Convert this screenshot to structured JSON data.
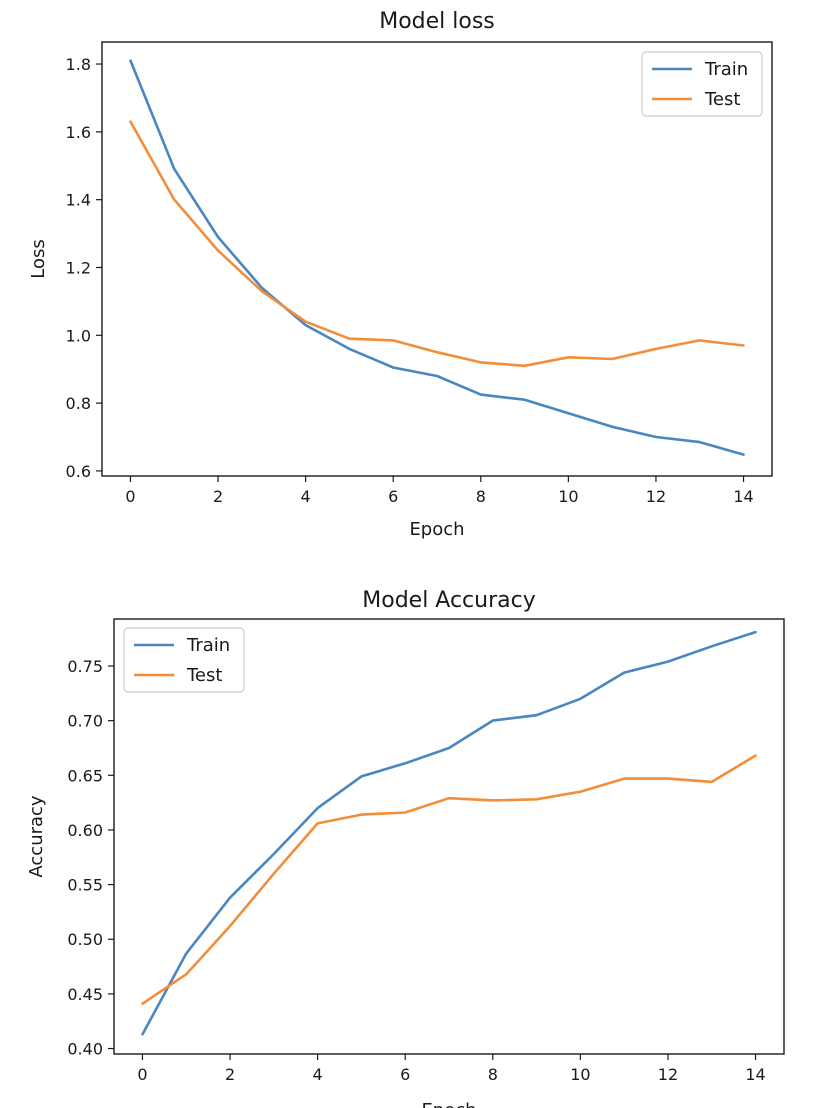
{
  "chart_data": [
    {
      "type": "line",
      "title": "Model loss",
      "xlabel": "Epoch",
      "ylabel": "Loss",
      "x": [
        0,
        1,
        2,
        3,
        4,
        5,
        6,
        7,
        8,
        9,
        10,
        11,
        12,
        13,
        14
      ],
      "xlim": [
        -0.65,
        14.65
      ],
      "ylim": [
        0.585,
        1.865
      ],
      "xticks": [
        0,
        2,
        4,
        6,
        8,
        10,
        12,
        14
      ],
      "yticks": [
        0.6,
        0.8,
        1.0,
        1.2,
        1.4,
        1.6,
        1.8
      ],
      "ytick_decimals": 1,
      "grid": false,
      "legend_position": "top-right",
      "series": [
        {
          "name": "Train",
          "color": "#4a86c0",
          "values": [
            1.81,
            1.49,
            1.29,
            1.14,
            1.03,
            0.96,
            0.905,
            0.88,
            0.825,
            0.81,
            0.77,
            0.73,
            0.7,
            0.685,
            0.648
          ]
        },
        {
          "name": "Test",
          "color": "#f28e3a",
          "values": [
            1.63,
            1.4,
            1.25,
            1.13,
            1.04,
            0.99,
            0.985,
            0.95,
            0.92,
            0.91,
            0.935,
            0.93,
            0.96,
            0.985,
            0.97
          ]
        }
      ]
    },
    {
      "type": "line",
      "title": "Model Accuracy",
      "xlabel": "Epoch",
      "ylabel": "Accuracy",
      "x": [
        0,
        1,
        2,
        3,
        4,
        5,
        6,
        7,
        8,
        9,
        10,
        11,
        12,
        13,
        14
      ],
      "xlim": [
        -0.65,
        14.65
      ],
      "ylim": [
        0.395,
        0.793
      ],
      "xticks": [
        0,
        2,
        4,
        6,
        8,
        10,
        12,
        14
      ],
      "yticks": [
        0.4,
        0.45,
        0.5,
        0.55,
        0.6,
        0.65,
        0.7,
        0.75
      ],
      "ytick_decimals": 2,
      "grid": false,
      "legend_position": "top-left",
      "series": [
        {
          "name": "Train",
          "color": "#4a86c0",
          "values": [
            0.413,
            0.487,
            0.538,
            0.578,
            0.62,
            0.649,
            0.661,
            0.675,
            0.7,
            0.705,
            0.72,
            0.744,
            0.754,
            0.768,
            0.781
          ]
        },
        {
          "name": "Test",
          "color": "#f28e3a",
          "values": [
            0.441,
            0.468,
            0.512,
            0.56,
            0.606,
            0.614,
            0.616,
            0.629,
            0.627,
            0.628,
            0.635,
            0.647,
            0.647,
            0.644,
            0.668
          ]
        }
      ]
    }
  ]
}
